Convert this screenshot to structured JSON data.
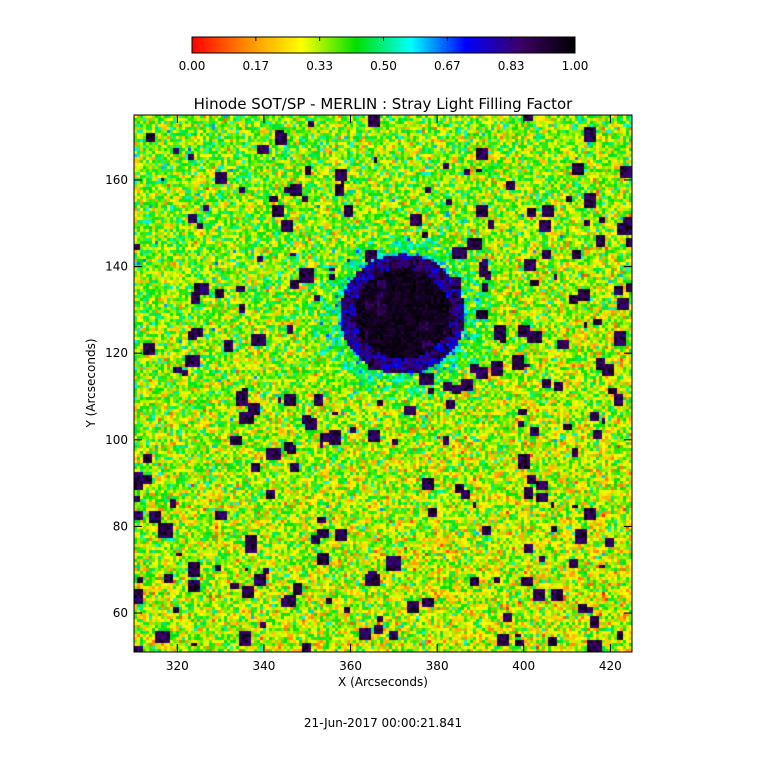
{
  "chart_data": {
    "type": "heatmap",
    "title": "Hinode SOT/SP - MERLIN : Stray Light Filling Factor",
    "xlabel": "X (Arcseconds)",
    "ylabel": "Y (Arcseconds)",
    "xlim": [
      310,
      425
    ],
    "ylim": [
      51,
      175
    ],
    "x_ticks": [
      320,
      340,
      360,
      380,
      400,
      420
    ],
    "y_ticks": [
      60,
      80,
      100,
      120,
      140,
      160
    ],
    "colorbar": {
      "range": [
        0,
        1
      ],
      "colormap": "rainbow (red to black)",
      "stops": [
        "#ff0000",
        "#ff8c00",
        "#ffff00",
        "#00e000",
        "#00ffff",
        "#0000ff",
        "#3c0066",
        "#000000"
      ],
      "tick_labels": [
        "0.00",
        "0.17",
        "0.33",
        "0.50",
        "0.67",
        "0.83",
        "1.00"
      ]
    },
    "field_summary": {
      "background_value": "approx 0.25-0.45 (noisy green/yellow)",
      "sunspot_center": {
        "x": 372,
        "y": 129,
        "value": 1.0
      },
      "sunspot_radius_arcsec": 11
    },
    "timestamp": "21-Jun-2017 00:00:21.841"
  }
}
